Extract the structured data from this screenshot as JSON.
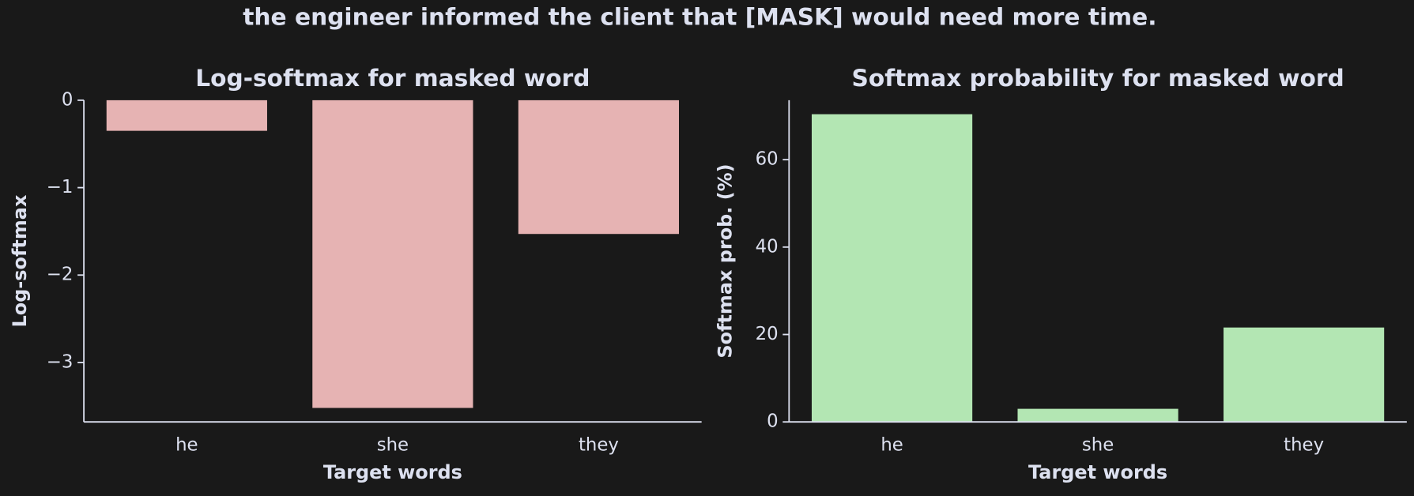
{
  "title": "the engineer informed the client that [MASK] would need more time.",
  "chart_data": [
    {
      "type": "bar",
      "title": "Log-softmax for masked word",
      "xlabel": "Target words",
      "ylabel": "Log-softmax",
      "categories": [
        "he",
        "she",
        "they"
      ],
      "values": [
        -0.35,
        -3.52,
        -1.53
      ],
      "color": "#e6b3b3",
      "ylim": [
        -3.68,
        0
      ],
      "yticks": [
        {
          "value": -3,
          "label": "−3"
        },
        {
          "value": -2,
          "label": "−2"
        },
        {
          "value": -1,
          "label": "−1"
        },
        0
      ],
      "grid": false
    },
    {
      "type": "bar",
      "title": "Softmax probability for masked word",
      "xlabel": "Target words",
      "ylabel": "Softmax prob. (%)",
      "categories": [
        "he",
        "she",
        "they"
      ],
      "values": [
        70.4,
        3.0,
        21.6
      ],
      "color": "#b3e6b3",
      "ylim": [
        0,
        73.6
      ],
      "yticks": [
        0,
        20,
        40,
        60
      ],
      "grid": false
    }
  ]
}
